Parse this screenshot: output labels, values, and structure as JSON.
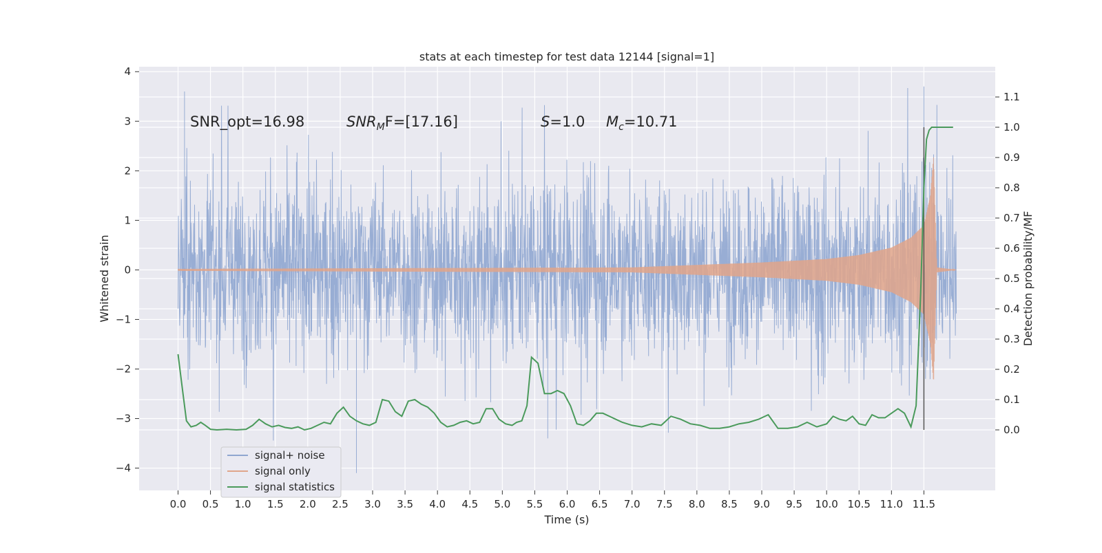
{
  "chart_data": {
    "type": "line",
    "title": "stats at each timestep for test data 12144 [signal=1]",
    "xlabel": "Time (s)",
    "ylabel_left": "Whitened strain",
    "ylabel_right": "Detection probability/MF",
    "xlim": [
      -0.6,
      12.6
    ],
    "ylim_left": [
      -4.45,
      4.1
    ],
    "ylim_right": [
      -0.2,
      1.2
    ],
    "x_ticks": [
      "0.0",
      "0.5",
      "1.0",
      "1.5",
      "2.0",
      "2.5",
      "3.0",
      "3.5",
      "4.0",
      "4.5",
      "5.0",
      "5.5",
      "6.0",
      "6.5",
      "7.0",
      "7.5",
      "8.0",
      "8.5",
      "9.0",
      "9.5",
      "10.0",
      "10.5",
      "11.0",
      "11.5"
    ],
    "y_ticks_left": [
      "−4",
      "−3",
      "−2",
      "−1",
      "0",
      "1",
      "2",
      "3",
      "4"
    ],
    "y_ticks_right": [
      "0.0",
      "0.1",
      "0.2",
      "0.3",
      "0.4",
      "0.5",
      "0.6",
      "0.7",
      "0.8",
      "0.9",
      "1.0",
      "1.1"
    ],
    "grid": true,
    "legend_position": "lower-left",
    "annotations": {
      "snr_opt": "SNR_opt=16.98",
      "snr_mf_base": "SNR",
      "snr_mf_sub": "M",
      "snr_mf_rest": "F=[17.16]",
      "s_label": "S",
      "s_value": "=1.0",
      "mc_base": "M",
      "mc_sub": "c",
      "mc_value": "=10.71"
    },
    "series": [
      {
        "name": "signal+ noise",
        "color": "#8fa6d0",
        "axis": "left",
        "x_range": [
          0.0,
          12.0
        ],
        "envelope_typical": 2.0,
        "envelope_max": 3.7,
        "envelope_min": -4.1,
        "notable_points": [
          [
            0.1,
            3.6
          ],
          [
            2.75,
            -4.1
          ],
          [
            11.5,
            3.7
          ],
          [
            5.7,
            -3.4
          ]
        ]
      },
      {
        "name": "signal only",
        "color": "#e0a58a",
        "axis": "left",
        "x": [
          0.0,
          7.0,
          8.0,
          9.0,
          10.0,
          10.5,
          11.0,
          11.3,
          11.5,
          11.6,
          11.65,
          11.7,
          12.0
        ],
        "amplitude": [
          0.02,
          0.05,
          0.1,
          0.15,
          0.22,
          0.3,
          0.45,
          0.65,
          0.9,
          1.5,
          2.3,
          0.05,
          0.0
        ]
      },
      {
        "name": "signal statistics",
        "color": "#4a9a5b",
        "axis": "right",
        "x": [
          0.0,
          0.07,
          0.13,
          0.2,
          0.28,
          0.35,
          0.42,
          0.5,
          0.6,
          0.75,
          0.9,
          1.05,
          1.15,
          1.25,
          1.35,
          1.45,
          1.55,
          1.65,
          1.75,
          1.85,
          1.95,
          2.05,
          2.15,
          2.25,
          2.35,
          2.45,
          2.55,
          2.65,
          2.75,
          2.85,
          2.95,
          3.05,
          3.15,
          3.25,
          3.35,
          3.45,
          3.55,
          3.65,
          3.75,
          3.85,
          3.95,
          4.05,
          4.15,
          4.25,
          4.35,
          4.45,
          4.55,
          4.65,
          4.75,
          4.85,
          4.95,
          5.05,
          5.15,
          5.22,
          5.3,
          5.38,
          5.45,
          5.55,
          5.65,
          5.75,
          5.85,
          5.95,
          6.05,
          6.15,
          6.25,
          6.35,
          6.45,
          6.55,
          6.7,
          6.85,
          7.0,
          7.15,
          7.3,
          7.45,
          7.6,
          7.75,
          7.9,
          8.05,
          8.2,
          8.35,
          8.5,
          8.65,
          8.8,
          8.95,
          9.1,
          9.25,
          9.4,
          9.55,
          9.7,
          9.85,
          10.0,
          10.1,
          10.2,
          10.3,
          10.4,
          10.5,
          10.6,
          10.7,
          10.8,
          10.9,
          11.0,
          11.1,
          11.2,
          11.3,
          11.38,
          11.45,
          11.5,
          11.54,
          11.58,
          11.62,
          11.66,
          11.7,
          11.8,
          11.9,
          11.95
        ],
        "y": [
          0.25,
          0.13,
          0.03,
          0.01,
          0.015,
          0.025,
          0.015,
          0.002,
          0.0,
          0.002,
          0.0,
          0.002,
          0.015,
          0.035,
          0.02,
          0.01,
          0.015,
          0.008,
          0.005,
          0.01,
          0.0,
          0.005,
          0.015,
          0.025,
          0.02,
          0.055,
          0.075,
          0.045,
          0.03,
          0.02,
          0.015,
          0.025,
          0.1,
          0.095,
          0.06,
          0.045,
          0.095,
          0.1,
          0.085,
          0.075,
          0.055,
          0.025,
          0.01,
          0.015,
          0.025,
          0.03,
          0.02,
          0.025,
          0.07,
          0.07,
          0.035,
          0.02,
          0.015,
          0.025,
          0.03,
          0.08,
          0.24,
          0.22,
          0.12,
          0.12,
          0.13,
          0.12,
          0.08,
          0.02,
          0.015,
          0.03,
          0.055,
          0.055,
          0.04,
          0.025,
          0.015,
          0.01,
          0.02,
          0.015,
          0.045,
          0.035,
          0.02,
          0.015,
          0.005,
          0.005,
          0.01,
          0.02,
          0.025,
          0.035,
          0.05,
          0.005,
          0.005,
          0.01,
          0.025,
          0.01,
          0.02,
          0.045,
          0.035,
          0.03,
          0.045,
          0.02,
          0.015,
          0.05,
          0.04,
          0.04,
          0.055,
          0.07,
          0.055,
          0.01,
          0.08,
          0.45,
          0.8,
          0.96,
          0.99,
          1.0,
          1.0,
          1.0,
          1.0,
          1.0,
          1.0
        ]
      }
    ],
    "marker_line": {
      "x": 11.5,
      "color": "#555555"
    }
  }
}
